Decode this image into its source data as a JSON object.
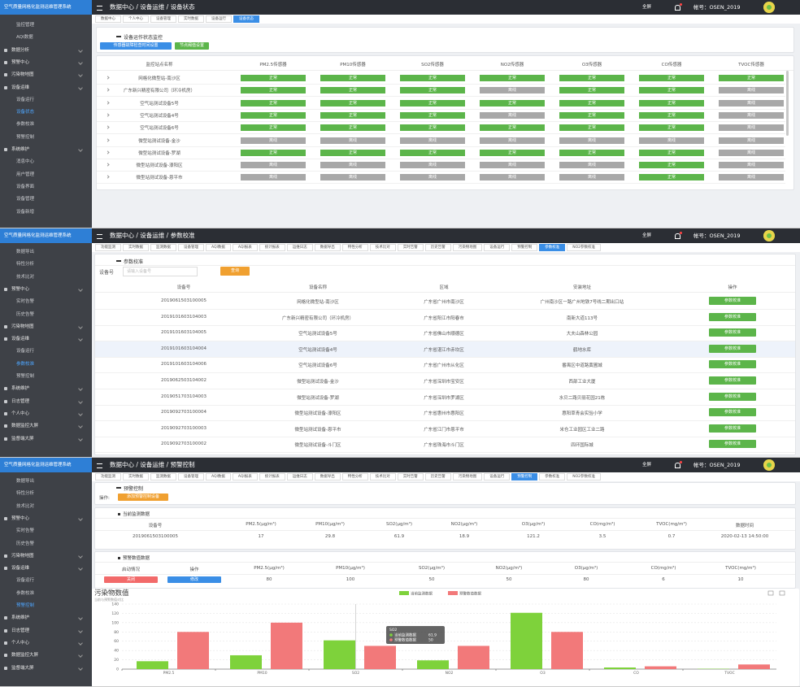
{
  "header": {
    "logo": "空气质量网格化监测运维管理系统",
    "fullscreen": "全屏",
    "account": "帐号：OSEN_2019"
  },
  "status_page": {
    "breadcrumb": "数据中心 / 设备运维 / 设备状态",
    "sidebar": [
      {
        "text": "监控管理"
      },
      {
        "text": "AQI数据"
      },
      {
        "text": "数据分析",
        "group": true
      },
      {
        "text": "预警中心",
        "group": true
      },
      {
        "text": "污染物地图",
        "group": true
      },
      {
        "text": "设备运维",
        "group": true
      },
      {
        "text": "设备运行"
      },
      {
        "text": "设备状态",
        "active": true
      },
      {
        "text": "参数校准"
      },
      {
        "text": "预警控制"
      },
      {
        "text": "系统维护",
        "group": true
      },
      {
        "text": "消息中心"
      },
      {
        "text": "用户管理"
      },
      {
        "text": "设备界面"
      },
      {
        "text": "设备管理"
      },
      {
        "text": "设备新增"
      }
    ],
    "tabs": [
      {
        "text": "数据中心"
      },
      {
        "text": "个人中心"
      },
      {
        "text": "设备管理"
      },
      {
        "text": "实时数据"
      },
      {
        "text": "设备运行"
      },
      {
        "text": "设备状态",
        "active": true
      }
    ],
    "card_title": "设备运作状态监控",
    "buttons": [
      "传感器故障检查时间设置",
      "节点阈值设置"
    ],
    "status_colors": {
      "正常": "#5cb54a",
      "离线": "#a8a8a8"
    },
    "columns": [
      "监控站点名称",
      "PM2.5传感器",
      "PM10传感器",
      "SO2传感器",
      "NO2传感器",
      "O3传感器",
      "CO传感器",
      "TVOC传感器"
    ],
    "rows": [
      {
        "name": "网格化微型站-南沙区",
        "cells": [
          "正常",
          "正常",
          "正常",
          "正常",
          "正常",
          "正常",
          "正常"
        ]
      },
      {
        "name": "广东新兴精密有限公司（环冷机房）",
        "cells": [
          "正常",
          "正常",
          "正常",
          "离线",
          "正常",
          "正常",
          "离线"
        ]
      },
      {
        "name": "空气站测试设备5号",
        "cells": [
          "正常",
          "正常",
          "正常",
          "正常",
          "正常",
          "正常",
          "离线"
        ]
      },
      {
        "name": "空气站测试设备4号",
        "cells": [
          "正常",
          "正常",
          "正常",
          "离线",
          "正常",
          "正常",
          "离线"
        ]
      },
      {
        "name": "空气站测试设备6号",
        "cells": [
          "正常",
          "正常",
          "正常",
          "正常",
          "正常",
          "正常",
          "离线"
        ]
      },
      {
        "name": "微型站测试设备-金沙",
        "cells": [
          "离线",
          "离线",
          "离线",
          "离线",
          "离线",
          "离线",
          "离线"
        ]
      },
      {
        "name": "微型站测试设备-罗湖",
        "cells": [
          "正常",
          "正常",
          "正常",
          "正常",
          "正常",
          "正常",
          "离线"
        ]
      },
      {
        "name": "微型站测试设备-濠阳区",
        "cells": [
          "离线",
          "离线",
          "离线",
          "离线",
          "离线",
          "正常",
          "离线"
        ]
      },
      {
        "name": "微型站测试设备-恩平市",
        "cells": [
          "离线",
          "离线",
          "离线",
          "离线",
          "离线",
          "正常",
          "离线"
        ]
      }
    ]
  },
  "calib_page": {
    "breadcrumb": "数据中心 / 设备运维 / 参数校准",
    "sidebar": [
      {
        "text": "数据导出"
      },
      {
        "text": "特性分析"
      },
      {
        "text": "技术比对"
      },
      {
        "text": "预警中心",
        "group": true
      },
      {
        "text": "实时告警"
      },
      {
        "text": "历史告警"
      },
      {
        "text": "污染物地图",
        "group": true
      },
      {
        "text": "设备运维",
        "group": true
      },
      {
        "text": "设备运行"
      },
      {
        "text": "参数校准",
        "active": true
      },
      {
        "text": "预警控制"
      },
      {
        "text": "系统维护",
        "group": true
      },
      {
        "text": "日志管理",
        "group": true
      },
      {
        "text": "个人中心",
        "group": true
      },
      {
        "text": "数据监控大屏",
        "group": true
      },
      {
        "text": "监督端大屏",
        "group": true
      }
    ],
    "tabs": [
      {
        "text": "功能监测"
      },
      {
        "text": "实时数据"
      },
      {
        "text": "监测数据"
      },
      {
        "text": "设备管理"
      },
      {
        "text": "AQI数据"
      },
      {
        "text": "AQI报表"
      },
      {
        "text": "统计报表"
      },
      {
        "text": "运维日志"
      },
      {
        "text": "数据导出"
      },
      {
        "text": "特性分析"
      },
      {
        "text": "技术比对"
      },
      {
        "text": "实时告警"
      },
      {
        "text": "历史告警"
      },
      {
        "text": "污染物地图"
      },
      {
        "text": "设备运行"
      },
      {
        "text": "预警控制"
      },
      {
        "text": "参数校准",
        "active": true
      },
      {
        "text": "NO2参数校准"
      }
    ],
    "card_title": "参数校准",
    "filter_label": "设备号",
    "filter_placeholder": "请输入设备号",
    "query": "查询",
    "columns": [
      "设备号",
      "设备名称",
      "区域",
      "安装地址",
      "操作"
    ],
    "action": "参数校准",
    "rows": [
      [
        "2019061503100005",
        "网格化微型站-南沙区",
        "广东省广州市南沙区",
        "广州南沙区一路广州地铁7号线二期出口站"
      ],
      [
        "2019101603104003",
        "广东新兴精密有限公司（环冷机房）",
        "广东省阳江市阳春市",
        "南新大道113号"
      ],
      [
        "2019101603104005",
        "空气站测试设备5号",
        "广东省佛山市顺德区",
        "大夫山森林公园"
      ],
      [
        "2019101603104004",
        "空气站测试设备4号",
        "广东省湛江市赤坎区",
        "鹤地水库"
      ],
      [
        "2019101603104006",
        "空气站测试设备6号",
        "广东省广州市从化区",
        "番禺区中道路黄圃城"
      ],
      [
        "2019062503104002",
        "微型站测试设备-金沙",
        "广东省深圳市宝安区",
        "西部工业大厦"
      ],
      [
        "2019051703104003",
        "微型站测试设备-罗湖",
        "广东省深圳市罗湖区",
        "水贝二路贝丽花园21栋"
      ],
      [
        "2019092703100004",
        "微型站测试设备-濠阳区",
        "广东省惠州市惠阳区",
        "惠阳草青会实验小学"
      ],
      [
        "2019092703100003",
        "微型站测试设备-恩平市",
        "广东省江门市恩平市",
        "米仓工业园区工业二路"
      ],
      [
        "2019092703100002",
        "微型站测试设备-斗门区",
        "广东省珠海市斗门区",
        "四环国际城"
      ]
    ]
  },
  "alert_page": {
    "breadcrumb": "数据中心 / 设备运维 / 预警控制",
    "sidebar": [
      {
        "text": "数据导出"
      },
      {
        "text": "特性分析"
      },
      {
        "text": "技术比对"
      },
      {
        "text": "预警中心",
        "group": true
      },
      {
        "text": "实时告警"
      },
      {
        "text": "历史告警"
      },
      {
        "text": "污染物地图",
        "group": true
      },
      {
        "text": "设备运维",
        "group": true
      },
      {
        "text": "设备运行"
      },
      {
        "text": "参数校准"
      },
      {
        "text": "预警控制",
        "active": true
      },
      {
        "text": "系统维护",
        "group": true
      },
      {
        "text": "日志管理",
        "group": true
      },
      {
        "text": "个人中心",
        "group": true
      },
      {
        "text": "数据监控大屏",
        "group": true
      },
      {
        "text": "监督端大屏",
        "group": true
      }
    ],
    "tabs": [
      {
        "text": "功能监测"
      },
      {
        "text": "实时数据"
      },
      {
        "text": "监测数据"
      },
      {
        "text": "设备管理"
      },
      {
        "text": "AQI数据"
      },
      {
        "text": "AQI报表"
      },
      {
        "text": "统计报表"
      },
      {
        "text": "运维日志"
      },
      {
        "text": "数据导出"
      },
      {
        "text": "特性分析"
      },
      {
        "text": "技术比对"
      },
      {
        "text": "实时告警"
      },
      {
        "text": "历史告警"
      },
      {
        "text": "污染物地图"
      },
      {
        "text": "设备运行"
      },
      {
        "text": "预警控制",
        "active": true
      },
      {
        "text": "参数校准"
      },
      {
        "text": "NO2参数校准"
      }
    ],
    "card_title": "预警控制",
    "op_label": "操作:",
    "op_button": "添加预警控制设备",
    "current_title": "当前监测数据",
    "current_columns": [
      "设备号",
      "PM2.5(μg/m³)",
      "PM10(μg/m³)",
      "SO2(μg/m³)",
      "NO2(μg/m³)",
      "O3(μg/m³)",
      "CO(mg/m³)",
      "TVOC(mg/m³)",
      "数据时间"
    ],
    "device": "2019061503100005",
    "time": "2020-02-13 14:50:00",
    "alert_title": "预警数值数据",
    "alert_columns": [
      "启动情况",
      "操作",
      "PM2.5(μg/m³)",
      "PM10(μg/m³)",
      "SO2(μg/m³)",
      "NO2(μg/m³)",
      "O3(μg/m³)",
      "CO(mg/m³)",
      "TVOC(mg/m³)"
    ],
    "close": "关闭",
    "edit": "修改"
  },
  "chart_data": {
    "type": "bar",
    "title": "污染物数值",
    "subtitle": "当前与预警数值对比",
    "categories": [
      "PM2.5",
      "PM10",
      "SO2",
      "NO2",
      "O3",
      "CO",
      "TVOC"
    ],
    "series": [
      {
        "name": "当前监测数据",
        "color": "#7ed23b",
        "values": [
          17,
          29.8,
          61.9,
          18.9,
          121.2,
          3.5,
          0.7
        ]
      },
      {
        "name": "预警数值数据",
        "color": "#f2797a",
        "values": [
          80,
          100,
          50,
          50,
          80,
          6,
          10
        ]
      }
    ],
    "ylim": [
      0,
      140
    ],
    "yticks": [
      0,
      20,
      40,
      60,
      80,
      100,
      120,
      140
    ],
    "grid": true,
    "tooltip_category": "SO2"
  }
}
